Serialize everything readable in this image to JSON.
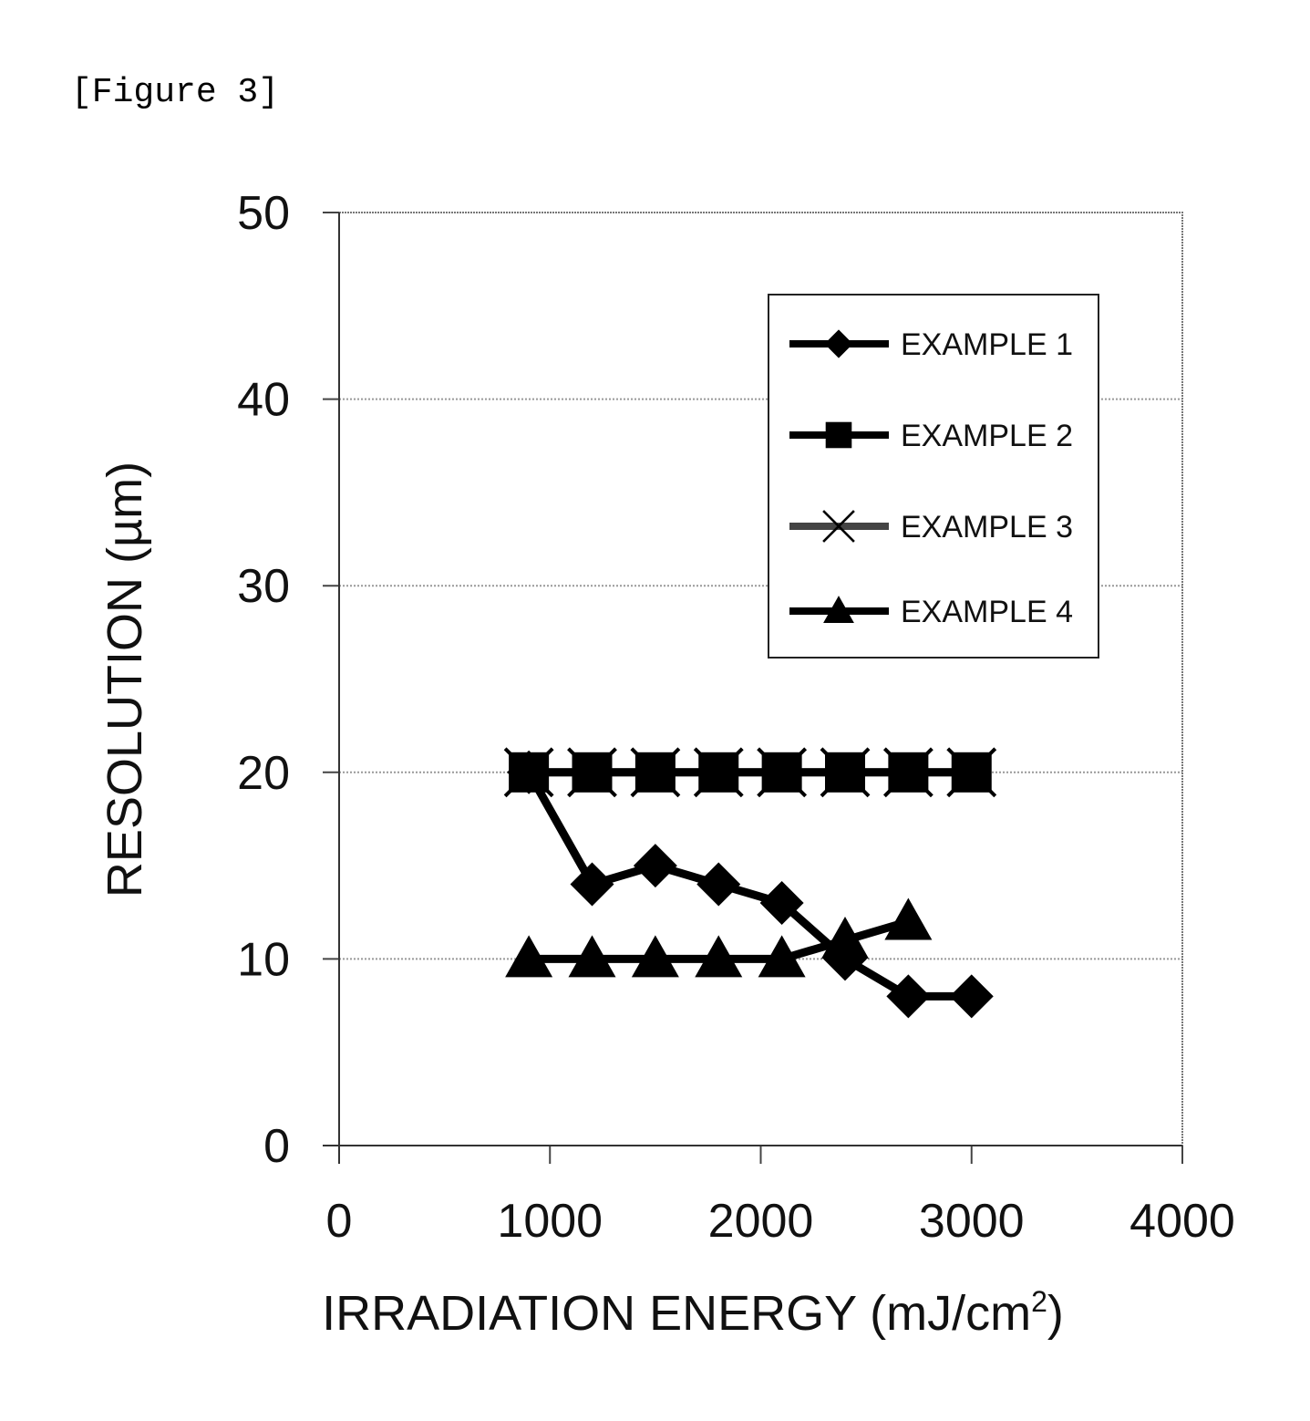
{
  "figure_label": "[Figure 3]",
  "chart_data": {
    "type": "line",
    "title": "",
    "xlabel": "IRRADIATION ENERGY (mJ/cm",
    "xlabel_superscript": "2",
    "xlabel_close": ")",
    "ylabel": "RESOLUTION (µm)",
    "xlim": [
      0,
      4000
    ],
    "ylim": [
      0,
      50
    ],
    "xticks": [
      0,
      1000,
      2000,
      3000,
      4000
    ],
    "yticks": [
      0,
      10,
      20,
      30,
      40,
      50
    ],
    "x_tick_labels": [
      "0",
      "1000",
      "2000",
      "3000",
      "4000"
    ],
    "y_tick_labels": [
      "0",
      "10",
      "20",
      "30",
      "40",
      "50"
    ],
    "grid": "horizontal",
    "legend_position": "top-right",
    "series": [
      {
        "name": "EXAMPLE 1",
        "marker": "diamond",
        "x": [
          900,
          1200,
          1500,
          1800,
          2100,
          2400,
          2700,
          3000
        ],
        "y": [
          20,
          14,
          15,
          14,
          13,
          10,
          8,
          8
        ]
      },
      {
        "name": "EXAMPLE 2",
        "marker": "square",
        "x": [
          900,
          1200,
          1500,
          1800,
          2100,
          2400,
          2700,
          3000
        ],
        "y": [
          20,
          20,
          20,
          20,
          20,
          20,
          20,
          20
        ]
      },
      {
        "name": "EXAMPLE 3",
        "marker": "x",
        "x": [
          900,
          1200,
          1500,
          1800,
          2100,
          2400,
          2700,
          3000
        ],
        "y": [
          20,
          20,
          20,
          20,
          20,
          20,
          20,
          20
        ]
      },
      {
        "name": "EXAMPLE 4",
        "marker": "triangle",
        "x": [
          900,
          1200,
          1500,
          1800,
          2100,
          2400,
          2700
        ],
        "y": [
          10,
          10,
          10,
          10,
          10,
          11,
          12
        ]
      }
    ]
  }
}
